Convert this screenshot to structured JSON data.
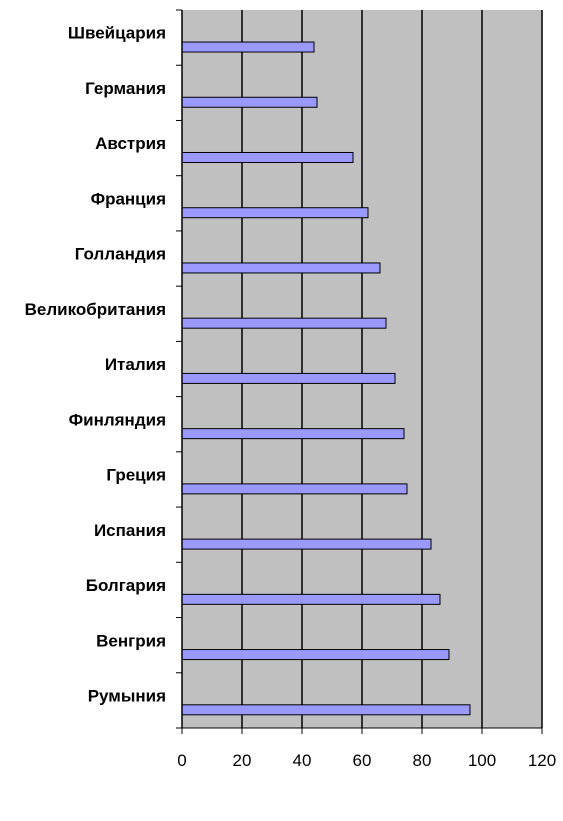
{
  "chart_data": {
    "type": "bar",
    "orientation": "horizontal",
    "categories": [
      "Швейцария",
      "Германия",
      "Австрия",
      "Франция",
      "Голландия",
      "Великобритания",
      "Италия",
      "Финляндия",
      "Греция",
      "Испания",
      "Болгария",
      "Венгрия",
      "Румыния"
    ],
    "values": [
      44,
      45,
      57,
      62,
      66,
      68,
      71,
      74,
      75,
      83,
      86,
      89,
      96
    ],
    "xlim": [
      0,
      120
    ],
    "xticks": [
      "0",
      "20",
      "40",
      "60",
      "80",
      "100",
      "120"
    ],
    "title": "",
    "xlabel": "",
    "ylabel": "",
    "grid": "vertical",
    "legend": "none",
    "colors": {
      "plot_background": "#c0c0c0",
      "bar_fill": "#9999ff",
      "bar_stroke": "#000000",
      "gridline": "#000000"
    }
  }
}
